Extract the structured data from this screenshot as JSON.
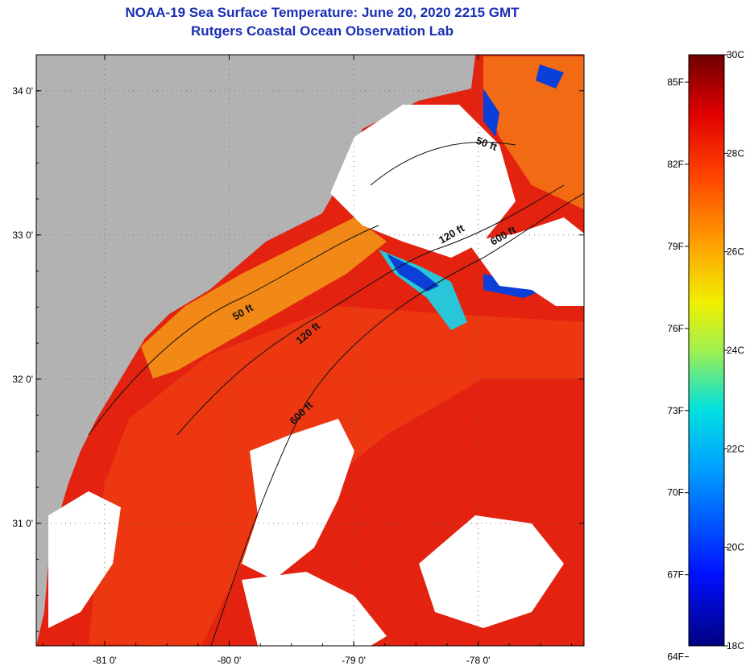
{
  "title": {
    "line1": "NOAA-19 Sea Surface Temperature:  June 20, 2020 2215 GMT",
    "line2": "Rutgers Coastal Ocean Observation Lab"
  },
  "map": {
    "lon_ticks": [
      {
        "label": "-81 0'",
        "value": -81
      },
      {
        "label": "-80 0'",
        "value": -80
      },
      {
        "label": "-79 0'",
        "value": -79
      },
      {
        "label": "-78 0'",
        "value": -78
      }
    ],
    "lat_ticks": [
      {
        "label": "34 0'",
        "value": 34
      },
      {
        "label": "33 0'",
        "value": 33
      },
      {
        "label": "32 0'",
        "value": 32
      },
      {
        "label": "31 0'",
        "value": 31
      }
    ],
    "lon_range": [
      -81.55,
      -77.15
    ],
    "lat_range": [
      30.15,
      34.25
    ],
    "contours": [
      {
        "label": "50 ft"
      },
      {
        "label": "120 ft"
      },
      {
        "label": "600 ft"
      },
      {
        "label": "50 ft"
      },
      {
        "label": "120 ft"
      },
      {
        "label": "600 ft"
      }
    ],
    "colors": {
      "land": "#b2b2b2",
      "cloud": "#ffffff",
      "warm_core": "#e3220f",
      "warm_mid": "#f04a10",
      "shelf": "#f8a51a",
      "cool": "#0a3fd8",
      "cyan": "#28c6d8"
    }
  },
  "colorbar": {
    "fahrenheit_labels": [
      "85F",
      "82F",
      "79F",
      "76F",
      "73F",
      "70F",
      "67F",
      "64F"
    ],
    "celsius_labels": [
      "30C",
      "28C",
      "26C",
      "24C",
      "22C",
      "20C",
      "18C"
    ],
    "celsius_range": [
      18,
      30
    ]
  }
}
